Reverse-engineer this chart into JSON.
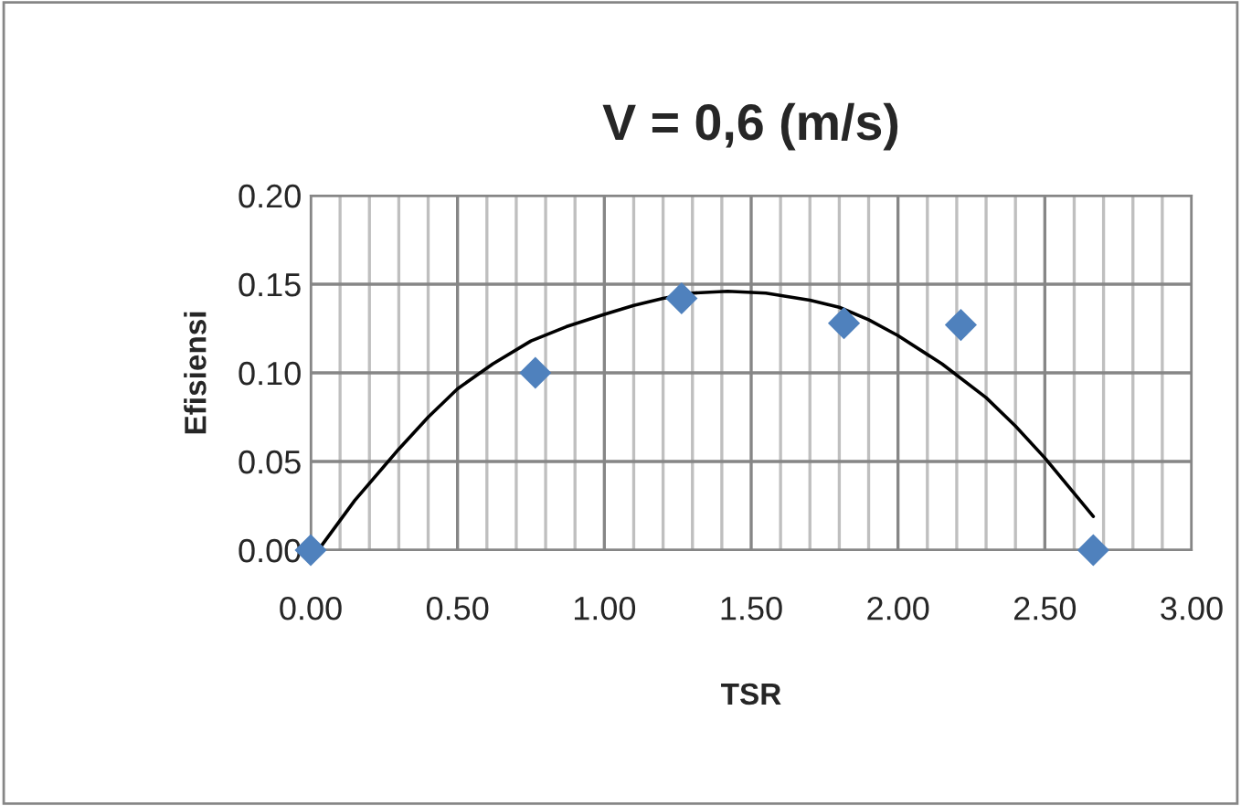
{
  "chart_data": {
    "type": "scatter",
    "title": "V = 0,6 (m/s)",
    "xlabel": "TSR",
    "ylabel": "Efisiensi",
    "series": [
      {
        "color": "#4f81bd",
        "marker": "diamond",
        "x": [
          0.0,
          0.765,
          1.263,
          1.816,
          2.214,
          2.665
        ],
        "values": [
          0.0,
          0.1,
          0.142,
          0.128,
          0.127,
          0.0
        ]
      },
      {
        "type": "line",
        "color": "#000000",
        "marker": "none",
        "line_style": "solid",
        "x": [
          0.03,
          0.15,
          0.3,
          0.4,
          0.5,
          0.62,
          0.75,
          0.87,
          1.0,
          1.1,
          1.2,
          1.3,
          1.42,
          1.55,
          1.7,
          1.8,
          1.9,
          2.0,
          2.15,
          2.3,
          2.4,
          2.5,
          2.6,
          2.665
        ],
        "values": [
          0.001,
          0.028,
          0.057,
          0.075,
          0.091,
          0.105,
          0.118,
          0.126,
          0.133,
          0.138,
          0.142,
          0.145,
          0.146,
          0.145,
          0.141,
          0.137,
          0.13,
          0.121,
          0.105,
          0.086,
          0.07,
          0.052,
          0.032,
          0.019
        ]
      }
    ],
    "xlim": [
      0,
      3
    ],
    "xticks": [
      {
        "value": 0,
        "label": "0.00"
      },
      {
        "value": 0.5,
        "label": "0.50"
      },
      {
        "value": 1,
        "label": "1.00"
      },
      {
        "value": 1.5,
        "label": "1.50"
      },
      {
        "value": 2,
        "label": "2.00"
      },
      {
        "value": 2.5,
        "label": "2.50"
      },
      {
        "value": 3,
        "label": "3.00"
      }
    ],
    "ylim": [
      0,
      0.2
    ],
    "yticks": [
      {
        "value": 0,
        "label": "0.00"
      },
      {
        "value": 0.05,
        "label": "0.05"
      },
      {
        "value": 0.1,
        "label": "0.10"
      },
      {
        "value": 0.15,
        "label": "0.15"
      },
      {
        "value": 0.2,
        "label": "0.20"
      }
    ],
    "grid": true,
    "legend": false
  }
}
